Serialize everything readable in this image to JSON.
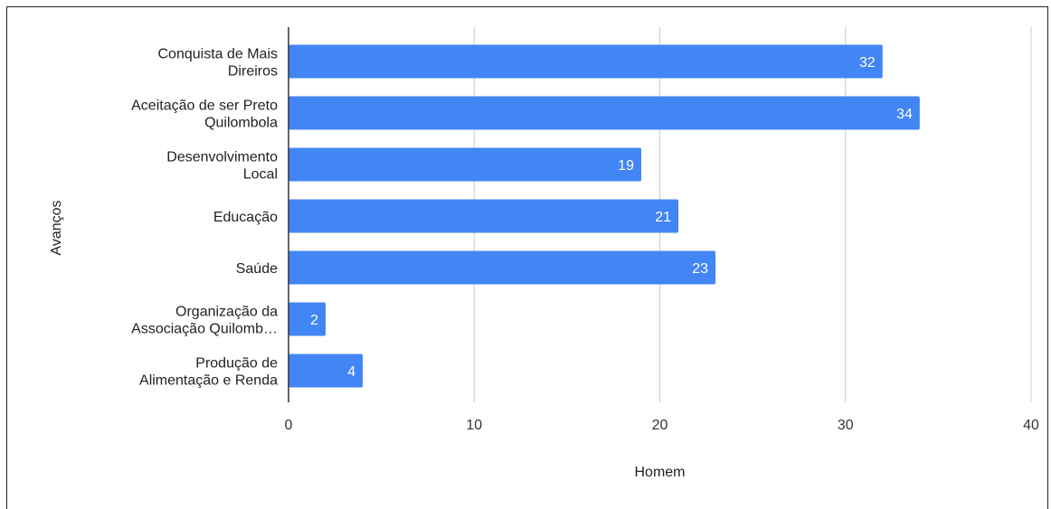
{
  "chart_data": {
    "type": "bar",
    "orientation": "horizontal",
    "categories": [
      [
        "Conquista de Mais",
        "Direiros"
      ],
      [
        "Aceitação de ser Preto",
        "Quilombola"
      ],
      [
        "Desenvolvimento",
        "Local"
      ],
      [
        "Educação"
      ],
      [
        "Saúde"
      ],
      [
        "Organização da",
        "Associação Quilomb…"
      ],
      [
        "Produção de",
        "Alimentação e Renda"
      ]
    ],
    "values": [
      32,
      34,
      19,
      21,
      23,
      2,
      4
    ],
    "data_labels": [
      "32",
      "34",
      "19",
      "21",
      "23",
      "2",
      "4"
    ],
    "xlabel": "Homem",
    "ylabel": "Avanços",
    "xlim": [
      0,
      40
    ],
    "xticks": [
      "0",
      "10",
      "20",
      "30",
      "40"
    ],
    "grid": "vertical",
    "bar_color": "#4285f4",
    "grid_color": "#cccccc"
  }
}
